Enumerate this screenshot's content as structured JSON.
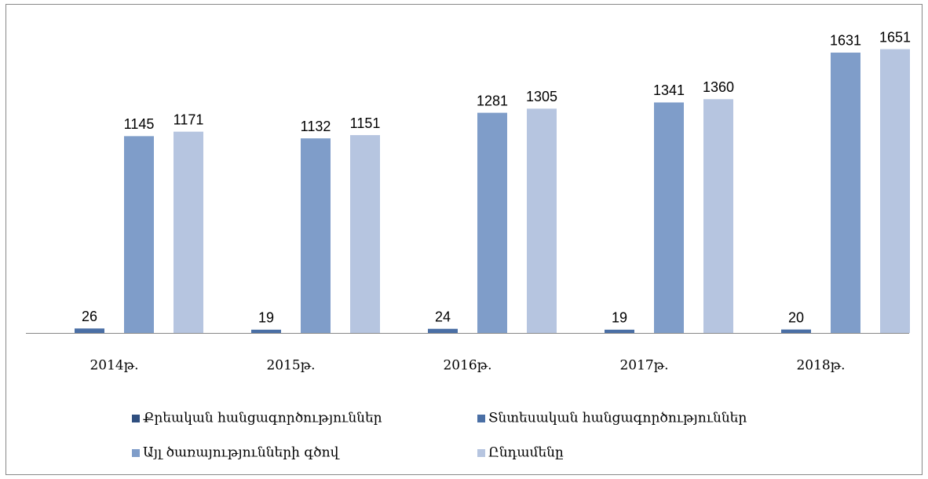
{
  "chart_data": {
    "type": "bar",
    "categories": [
      "2014թ.",
      "2015թ.",
      "2016թ.",
      "2017թ.",
      "2018թ."
    ],
    "series": [
      {
        "name": "Քրեական հանցագործություններ",
        "color": "#2f4f7f",
        "values": [
          null,
          null,
          null,
          null,
          null
        ]
      },
      {
        "name": "Տնտեսական հանցագործություններ",
        "color": "#4a6fa5",
        "values": [
          26,
          19,
          24,
          19,
          20
        ]
      },
      {
        "name": "Այլ ծառայությունների գծով",
        "color": "#7f9dc9",
        "values": [
          1145,
          1132,
          1281,
          1341,
          1631
        ]
      },
      {
        "name": "Ընդամենը",
        "color": "#b6c5e0",
        "values": [
          1171,
          1151,
          1305,
          1360,
          1651
        ]
      }
    ],
    "ylim": [
      0,
      1800
    ]
  }
}
